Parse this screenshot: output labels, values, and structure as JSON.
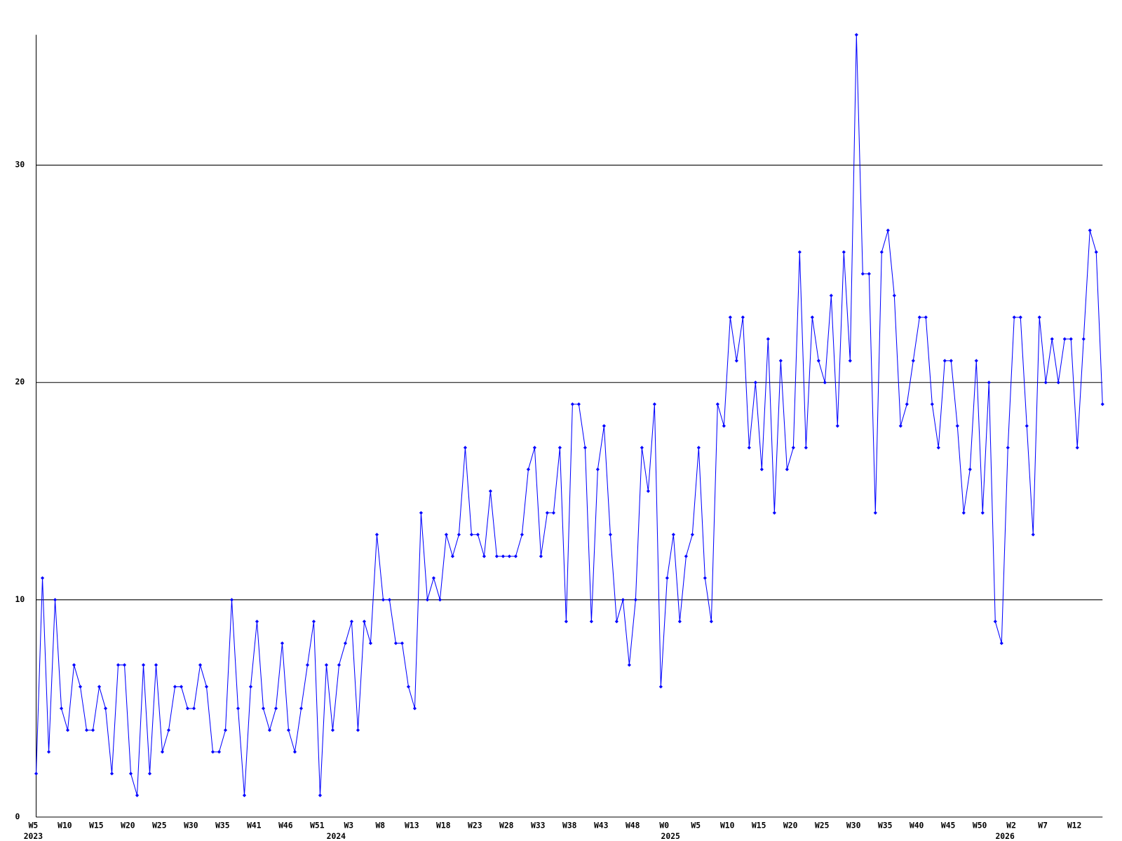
{
  "chart_data": {
    "type": "line",
    "categories": [
      "W5",
      null,
      null,
      null,
      null,
      "W10",
      null,
      null,
      null,
      null,
      "W15",
      null,
      null,
      null,
      null,
      "W20",
      null,
      null,
      null,
      null,
      "W25",
      null,
      null,
      null,
      null,
      "W30",
      null,
      null,
      null,
      null,
      "W35",
      null,
      null,
      null,
      null,
      "W41",
      null,
      null,
      null,
      null,
      "W46",
      null,
      null,
      null,
      null,
      "W51",
      null,
      null,
      null,
      null,
      "W3",
      null,
      null,
      null,
      null,
      "W8",
      null,
      null,
      null,
      null,
      "W13",
      null,
      null,
      null,
      null,
      "W18",
      null,
      null,
      null,
      null,
      "W23",
      null,
      null,
      null,
      null,
      "W28",
      null,
      null,
      null,
      null,
      "W33",
      null,
      null,
      null,
      null,
      "W38",
      null,
      null,
      null,
      null,
      "W43",
      null,
      null,
      null,
      null,
      "W48",
      null,
      null,
      null,
      null,
      "W0",
      null,
      null,
      null,
      null,
      "W5",
      null,
      null,
      null,
      null,
      "W10",
      null,
      null,
      null,
      null,
      "W15",
      null,
      null,
      null,
      null,
      "W20",
      null,
      null,
      null,
      null,
      "W25",
      null,
      null,
      null,
      null,
      "W30",
      null,
      null,
      null,
      null,
      "W35",
      null,
      null,
      null,
      null,
      "W40",
      null,
      null,
      null,
      null,
      "W45",
      null,
      null,
      null,
      null,
      "W50",
      null,
      null,
      null,
      null,
      "W2",
      null,
      null,
      null,
      null,
      "W7",
      null,
      null,
      null,
      null,
      "W12",
      null,
      null,
      null,
      null
    ],
    "category_years": [
      "2023",
      null,
      null,
      null,
      null,
      null,
      null,
      null,
      null,
      null,
      null,
      null,
      null,
      null,
      null,
      null,
      null,
      null,
      null,
      null,
      null,
      null,
      null,
      null,
      null,
      null,
      null,
      null,
      null,
      null,
      null,
      null,
      null,
      null,
      null,
      null,
      null,
      null,
      null,
      null,
      null,
      null,
      null,
      null,
      null,
      null,
      null,
      null,
      "2024",
      null,
      null,
      null,
      null,
      null,
      null,
      null,
      null,
      null,
      null,
      null,
      null,
      null,
      null,
      null,
      null,
      null,
      null,
      null,
      null,
      null,
      null,
      null,
      null,
      null,
      null,
      null,
      null,
      null,
      null,
      null,
      null,
      null,
      null,
      null,
      null,
      null,
      null,
      null,
      null,
      null,
      null,
      null,
      null,
      null,
      null,
      null,
      null,
      null,
      null,
      null,
      null,
      "2025",
      null,
      null,
      null,
      null,
      null,
      null,
      null,
      null,
      null,
      null,
      null,
      null,
      null,
      null,
      null,
      null,
      null,
      null,
      null,
      null,
      null,
      null,
      null,
      null,
      null,
      null,
      null,
      null,
      null,
      null,
      null,
      null,
      null,
      null,
      null,
      null,
      null,
      null,
      null,
      null,
      null,
      null,
      null,
      null,
      null,
      null,
      null,
      null,
      null,
      null,
      null,
      null,
      "2026",
      null,
      null,
      null,
      null,
      null,
      null,
      null,
      null,
      null,
      null,
      null,
      null,
      null,
      null,
      null
    ],
    "series": [
      {
        "color": "#0000ff",
        "values": [
          2,
          11,
          3,
          10,
          5,
          4,
          7,
          6,
          4,
          4,
          6,
          5,
          2,
          7,
          7,
          2,
          1,
          7,
          2,
          7,
          3,
          4,
          6,
          6,
          5,
          5,
          7,
          6,
          3,
          3,
          4,
          10,
          5,
          1,
          6,
          9,
          5,
          4,
          5,
          8,
          4,
          3,
          5,
          7,
          9,
          1,
          7,
          4,
          7,
          8,
          9,
          4,
          9,
          8,
          13,
          10,
          10,
          8,
          8,
          6,
          5,
          14,
          10,
          11,
          10,
          13,
          12,
          13,
          17,
          13,
          13,
          12,
          15,
          12,
          12,
          12,
          12,
          13,
          16,
          17,
          12,
          14,
          14,
          17,
          9,
          19,
          19,
          17,
          9,
          16,
          18,
          13,
          9,
          10,
          7,
          10,
          17,
          15,
          19,
          6,
          11,
          13,
          9,
          12,
          13,
          17,
          11,
          9,
          19,
          18,
          23,
          21,
          23,
          17,
          20,
          16,
          22,
          14,
          21,
          16,
          17,
          26,
          17,
          23,
          21,
          20,
          24,
          18,
          26,
          21,
          36,
          25,
          25,
          14,
          26,
          27,
          24,
          18,
          19,
          21,
          23,
          23,
          19,
          17,
          21,
          21,
          18,
          14,
          16,
          21,
          14,
          20,
          9,
          8,
          17,
          23,
          23,
          18,
          13,
          23,
          20,
          22,
          20,
          22,
          22,
          17,
          22,
          27,
          26,
          19
        ]
      }
    ],
    "ylim": [
      0,
      36
    ],
    "yticks": [
      0,
      10,
      20,
      30
    ],
    "grid": true
  }
}
